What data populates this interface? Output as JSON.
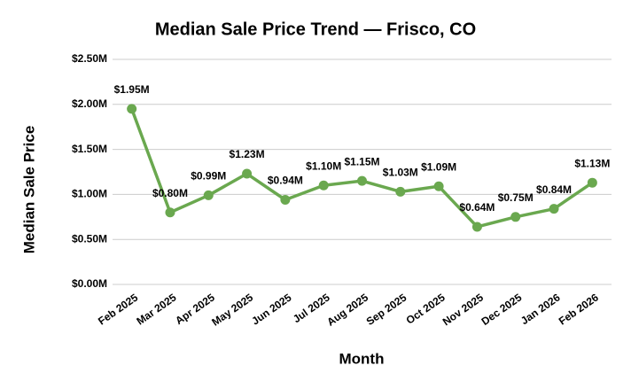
{
  "chart_data": {
    "type": "line",
    "title": "Median Sale Price Trend — Frisco, CO",
    "x_label": "Month",
    "y_label": "Median Sale Price",
    "categories": [
      "Feb 2025",
      "Mar 2025",
      "Apr 2025",
      "May 2025",
      "Jun 2025",
      "Jul 2025",
      "Aug 2025",
      "Sep 2025",
      "Oct 2025",
      "Nov 2025",
      "Dec 2025",
      "Jan 2026",
      "Feb 2026"
    ],
    "series": [
      {
        "name": "Median Sale Price",
        "color": "#6aa84f",
        "values": [
          1950000,
          800000,
          990000,
          1230000,
          940000,
          1100000,
          1150000,
          1030000,
          1090000,
          640000,
          750000,
          840000,
          1130000
        ],
        "value_labels": [
          "$1.95M",
          "$0.80M",
          "$0.99M",
          "$1.23M",
          "$0.94M",
          "$1.10M",
          "$1.15M",
          "$1.03M",
          "$1.09M",
          "$0.64M",
          "$0.75M",
          "$0.84M",
          "$1.13M"
        ]
      }
    ],
    "ylim": [
      0,
      2500000
    ],
    "yticks": [
      {
        "value": 0,
        "label": "$0.00M"
      },
      {
        "value": 500000,
        "label": "$0.50M"
      },
      {
        "value": 1000000,
        "label": "$1.00M"
      },
      {
        "value": 1500000,
        "label": "$1.50M"
      },
      {
        "value": 2000000,
        "label": "$2.00M"
      },
      {
        "value": 2500000,
        "label": "$2.50M"
      }
    ],
    "grid": true
  }
}
